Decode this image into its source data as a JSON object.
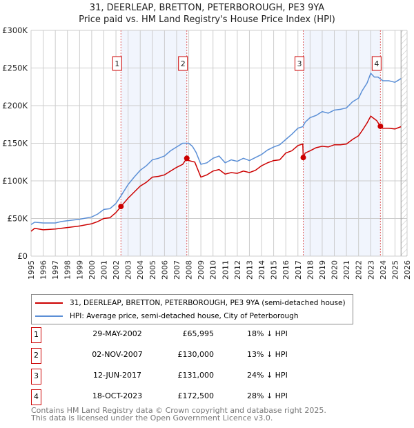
{
  "title": "31, DEERLEAP, BRETTON, PETERBOROUGH, PE3 9YA",
  "subtitle": "Price paid vs. HM Land Registry's House Price Index (HPI)",
  "chart_data": {
    "type": "line",
    "title": "31, DEERLEAP, BRETTON, PETERBOROUGH, PE3 9YA — Price paid vs. HM Land Registry's House Price Index (HPI)",
    "xlim": [
      1995,
      2026
    ],
    "ylim": [
      0,
      300000
    ],
    "x_ticks": [
      "1995",
      "1996",
      "1997",
      "1998",
      "1999",
      "2000",
      "2001",
      "2002",
      "2003",
      "2004",
      "2005",
      "2006",
      "2007",
      "2008",
      "2009",
      "2010",
      "2011",
      "2012",
      "2013",
      "2014",
      "2015",
      "2016",
      "2017",
      "2018",
      "2019",
      "2020",
      "2021",
      "2022",
      "2023",
      "2024",
      "2025",
      "2026"
    ],
    "y_ticks": [
      {
        "v": 0,
        "label": "£0"
      },
      {
        "v": 50000,
        "label": "£50K"
      },
      {
        "v": 100000,
        "label": "£100K"
      },
      {
        "v": 150000,
        "label": "£150K"
      },
      {
        "v": 200000,
        "label": "£200K"
      },
      {
        "v": 250000,
        "label": "£250K"
      },
      {
        "v": 300000,
        "label": "£300K"
      }
    ],
    "grid": true,
    "shaded_ranges": [
      [
        2002.41,
        2007.84
      ],
      [
        2017.44,
        2023.8
      ]
    ],
    "forecast_hatch_from": 2025.5,
    "series": [
      {
        "name": "31, DEERLEAP, BRETTON, PETERBOROUGH, PE3 9YA (semi-detached house)",
        "color": "#cc0000",
        "x": [
          1995,
          1995.3,
          1996,
          1997,
          1998,
          1999,
          2000,
          2000.5,
          2001,
          2001.5,
          2002,
          2002.41,
          2003,
          2003.5,
          2004,
          2004.5,
          2005,
          2005.5,
          2006,
          2006.5,
          2007,
          2007.5,
          2007.84,
          2008,
          2008.5,
          2009,
          2009.5,
          2010,
          2010.5,
          2011,
          2011.5,
          2012,
          2012.5,
          2013,
          2013.5,
          2014,
          2014.5,
          2015,
          2015.5,
          2016,
          2016.5,
          2017,
          2017.4,
          2017.44,
          2017.6,
          2018,
          2018.5,
          2019,
          2019.5,
          2020,
          2020.5,
          2021,
          2021.5,
          2022,
          2022.3,
          2022.7,
          2023,
          2023.5,
          2023.8,
          2024,
          2024.5,
          2025,
          2025.5
        ],
        "y": [
          33000,
          37000,
          35000,
          36000,
          38000,
          40000,
          43000,
          46000,
          50000,
          51000,
          58000,
          65995,
          77000,
          85000,
          93000,
          98000,
          105000,
          106000,
          108000,
          113000,
          118000,
          122000,
          130000,
          127000,
          125000,
          105000,
          108000,
          113000,
          115000,
          109000,
          111000,
          110000,
          113000,
          111000,
          114000,
          120000,
          124000,
          127000,
          128000,
          137000,
          140000,
          147000,
          149000,
          131000,
          137000,
          140000,
          144000,
          146000,
          145000,
          148000,
          148000,
          149000,
          155000,
          160000,
          167000,
          177000,
          186000,
          180000,
          172500,
          170000,
          170000,
          169000,
          172000
        ]
      },
      {
        "name": "HPI: Average price, semi-detached house, City of Peterborough",
        "color": "#5b8fd6",
        "x": [
          1995,
          1995.3,
          1996,
          1997,
          1997.5,
          1998,
          1999,
          2000,
          2000.5,
          2001,
          2001.5,
          2002,
          2002.41,
          2003,
          2003.5,
          2004,
          2004.5,
          2005,
          2005.5,
          2006,
          2006.5,
          2007,
          2007.5,
          2008,
          2008.3,
          2008.6,
          2009,
          2009.5,
          2010,
          2010.5,
          2011,
          2011.5,
          2012,
          2012.5,
          2013,
          2013.5,
          2014,
          2014.5,
          2015,
          2015.5,
          2016,
          2016.5,
          2017,
          2017.4,
          2017.6,
          2018,
          2018.5,
          2019,
          2019.5,
          2020,
          2020.5,
          2021,
          2021.5,
          2022,
          2022.3,
          2022.7,
          2023,
          2023.3,
          2023.6,
          2024,
          2024.5,
          2025,
          2025.5
        ],
        "y": [
          42000,
          45000,
          44000,
          44000,
          46000,
          47000,
          49000,
          52000,
          56000,
          62000,
          63000,
          70000,
          80000,
          95000,
          105000,
          114000,
          120000,
          128000,
          130000,
          133000,
          140000,
          145000,
          150000,
          150000,
          146000,
          138000,
          122000,
          124000,
          130000,
          133000,
          124000,
          128000,
          126000,
          130000,
          127000,
          131000,
          135000,
          141000,
          145000,
          148000,
          155000,
          162000,
          170000,
          172000,
          178000,
          184000,
          187000,
          192000,
          190000,
          194000,
          195000,
          197000,
          205000,
          210000,
          220000,
          230000,
          243000,
          238000,
          238000,
          233000,
          233000,
          231000,
          236000
        ]
      }
    ],
    "sales": [
      {
        "id": "1",
        "x": 2002.41,
        "y": 65995,
        "date": "29-MAY-2002",
        "price": "£65,995",
        "hpi": "18% ↓ HPI"
      },
      {
        "id": "2",
        "x": 2007.84,
        "y": 130000,
        "date": "02-NOV-2007",
        "price": "£130,000",
        "hpi": "13% ↓ HPI"
      },
      {
        "id": "3",
        "x": 2017.44,
        "y": 131000,
        "date": "12-JUN-2017",
        "price": "£131,000",
        "hpi": "24% ↓ HPI"
      },
      {
        "id": "4",
        "x": 2023.8,
        "y": 172500,
        "date": "18-OCT-2023",
        "price": "£172,500",
        "hpi": "28% ↓ HPI"
      }
    ]
  },
  "legend": {
    "property": "31, DEERLEAP, BRETTON, PETERBOROUGH, PE3 9YA (semi-detached house)",
    "hpi": "HPI: Average price, semi-detached house, City of Peterborough"
  },
  "footer": {
    "line1": "Contains HM Land Registry data © Crown copyright and database right 2025.",
    "line2": "This data is licensed under the Open Government Licence v3.0."
  }
}
